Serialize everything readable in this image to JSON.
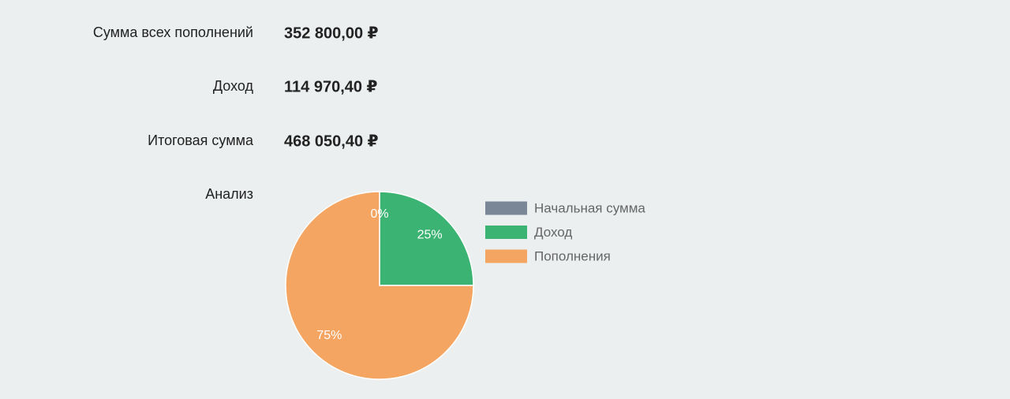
{
  "rows": [
    {
      "label": "Сумма всех пополнений",
      "value": "352 800,00 ₽"
    },
    {
      "label": "Доход",
      "value": "114 970,40 ₽"
    },
    {
      "label": "Итоговая сумма",
      "value": "468 050,40 ₽"
    }
  ],
  "analysis_label": "Анализ",
  "chart_data": {
    "type": "pie",
    "categories": [
      "Начальная сумма",
      "Доход",
      "Пополнения"
    ],
    "values": [
      0,
      25,
      75
    ],
    "value_labels": [
      "0%",
      "25%",
      "75%"
    ],
    "colors": [
      "#798797",
      "#3bb372",
      "#f4a562"
    ]
  }
}
